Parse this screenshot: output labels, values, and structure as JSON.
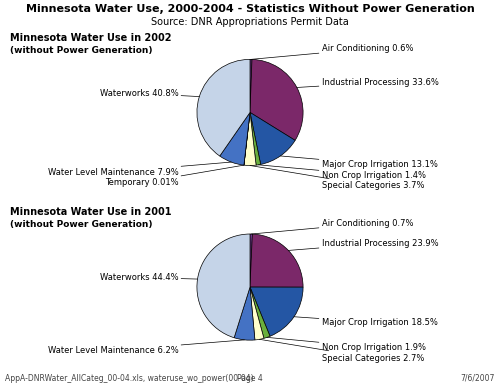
{
  "title": "Minnesota Water Use, 2000-2004 - Statistics Without Power Generation",
  "subtitle": "Source: DNR Appropriations Permit Data",
  "annotations": [
    "AppA-DNRWater_AllCateg_00-04.xls, wateruse_wo_power(00-04)",
    "Page 4",
    "7/6/2007"
  ],
  "chart_data": [
    {
      "type": "pie",
      "title": "Minnesota Water Use in 2002",
      "subtitle": "(without Power Generation)",
      "categories": [
        "Air Conditioning 0.6%",
        "Industrial Processing 33.6%",
        "Major Crop Irrigation 13.1%",
        "Non Crop Irrigation 1.4%",
        "Special Categories 3.7%",
        "Temporary 0.01%",
        "Water Level Maintenance 7.9%",
        "Waterworks 40.8%"
      ],
      "values": [
        0.6,
        33.6,
        13.1,
        1.4,
        3.7,
        0.01,
        7.9,
        40.8
      ],
      "colors": [
        "#7B3FA0",
        "#7B2869",
        "#2456A4",
        "#6AAF3D",
        "#FFFFCC",
        "#9DC3C6",
        "#4472C4",
        "#C5D4E8"
      ]
    },
    {
      "type": "pie",
      "title": "Minnesota Water Use in 2001",
      "subtitle": "(without Power Generation)",
      "categories": [
        "Air Conditioning 0.7%",
        "Industrial Processing 23.9%",
        "Major Crop Irrigation 18.5%",
        "Non Crop Irrigation 1.9%",
        "Special Categories 2.7%",
        "Water Level Maintenance 6.2%",
        "Waterworks 44.4%"
      ],
      "values": [
        0.7,
        23.9,
        18.5,
        1.9,
        2.7,
        6.2,
        44.4
      ],
      "colors": [
        "#7B3FA0",
        "#7B2869",
        "#2456A4",
        "#6AAF3D",
        "#FFFFCC",
        "#4472C4",
        "#C5D4E8"
      ]
    }
  ]
}
